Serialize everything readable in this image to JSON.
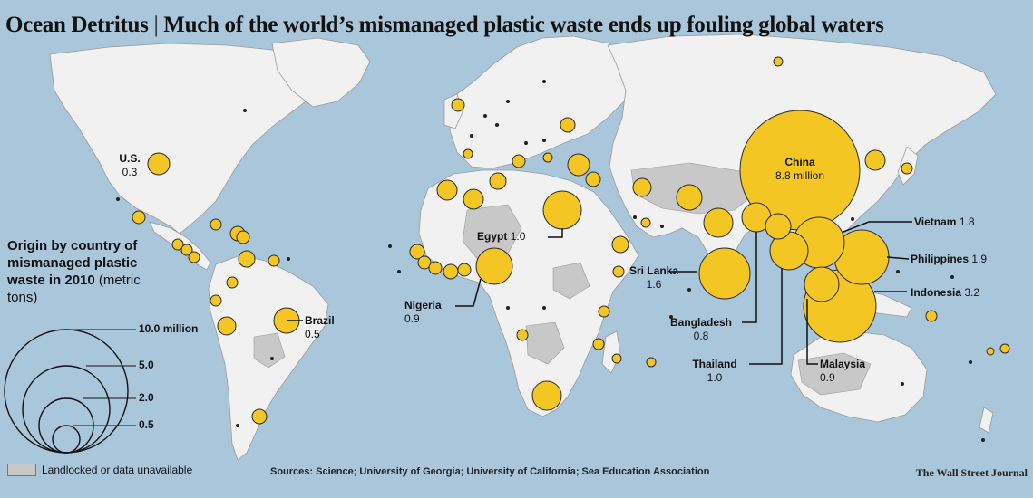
{
  "title": {
    "main": "Ocean Detritus",
    "separator": "|",
    "sub": "Much of the world’s mismanaged plastic waste ends up fouling global waters"
  },
  "legend": {
    "title": "Origin by country of mismanaged plastic waste in 2010",
    "unit": "(metric tons)",
    "sizes": [
      {
        "label": "10.0 million",
        "value": 10.0
      },
      {
        "label": "5.0",
        "value": 5.0
      },
      {
        "label": "2.0",
        "value": 2.0
      },
      {
        "label": "0.5",
        "value": 0.5
      }
    ],
    "unavailable": "Landlocked or data unavailable"
  },
  "labeled_countries": [
    {
      "id": "china",
      "name": "China",
      "value": "8.8 million",
      "tons_millions": 8.8
    },
    {
      "id": "indonesia",
      "name": "Indonesia",
      "value": "3.2",
      "tons_millions": 3.2
    },
    {
      "id": "philippines",
      "name": "Philippines",
      "value": "1.9",
      "tons_millions": 1.9
    },
    {
      "id": "vietnam",
      "name": "Vietnam",
      "value": "1.8",
      "tons_millions": 1.8
    },
    {
      "id": "srilanka",
      "name": "Sri Lanka",
      "value": "1.6",
      "tons_millions": 1.6
    },
    {
      "id": "thailand",
      "name": "Thailand",
      "value": "1.0",
      "tons_millions": 1.0
    },
    {
      "id": "egypt",
      "name": "Egypt",
      "value": "1.0",
      "tons_millions": 1.0
    },
    {
      "id": "malaysia",
      "name": "Malaysia",
      "value": "0.9",
      "tons_millions": 0.9
    },
    {
      "id": "nigeria",
      "name": "Nigeria",
      "value": "0.9",
      "tons_millions": 0.9
    },
    {
      "id": "bangladesh",
      "name": "Bangladesh",
      "value": "0.8",
      "tons_millions": 0.8
    },
    {
      "id": "brazil",
      "name": "Brazil",
      "value": "0.5",
      "tons_millions": 0.5
    },
    {
      "id": "us",
      "name": "U.S.",
      "value": "0.3",
      "tons_millions": 0.3
    }
  ],
  "sources": "Sources: Science; University of Georgia; University of California; Sea Education Association",
  "credit": "The Wall Street Journal",
  "colors": {
    "ocean": "#a9c6db",
    "land": "#f1f1f1",
    "unavailable": "#c8c8c8",
    "bubble": "#f3c623",
    "bubble_stroke": "#2a2a2a"
  }
}
